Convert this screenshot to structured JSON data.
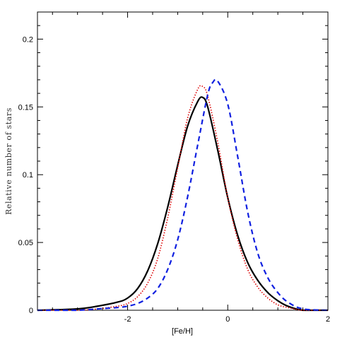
{
  "chart_data": {
    "type": "line",
    "xlabel": "[Fe/H]",
    "ylabel": "Relative number of stars",
    "xlim": [
      -3.8,
      2.0
    ],
    "ylim": [
      0,
      0.22
    ],
    "x_ticks": [
      {
        "value": -2,
        "label": "-2"
      },
      {
        "value": 0,
        "label": "0"
      },
      {
        "value": 2,
        "label": "2"
      }
    ],
    "y_ticks": [
      {
        "value": 0,
        "label": "0"
      },
      {
        "value": 0.05,
        "label": "0.05"
      },
      {
        "value": 0.1,
        "label": "0.1"
      },
      {
        "value": 0.15,
        "label": "0.15"
      },
      {
        "value": 0.2,
        "label": "0.2"
      }
    ],
    "grid": false,
    "series": [
      {
        "style": "solid",
        "color": "#000000",
        "x": [
          -3.8,
          -3.0,
          -2.6,
          -2.2,
          -2.0,
          -1.8,
          -1.6,
          -1.4,
          -1.2,
          -1.0,
          -0.8,
          -0.6,
          -0.5,
          -0.4,
          -0.2,
          0.0,
          0.2,
          0.4,
          0.6,
          0.8,
          1.0,
          1.2,
          1.5,
          2.0
        ],
        "y": [
          0.0,
          0.001,
          0.003,
          0.006,
          0.009,
          0.016,
          0.029,
          0.049,
          0.076,
          0.107,
          0.136,
          0.154,
          0.157,
          0.15,
          0.118,
          0.083,
          0.055,
          0.035,
          0.022,
          0.013,
          0.007,
          0.003,
          0.0,
          0.0
        ]
      },
      {
        "style": "dotted",
        "color": "#dd0000",
        "x": [
          -3.8,
          -3.0,
          -2.6,
          -2.2,
          -2.0,
          -1.8,
          -1.6,
          -1.4,
          -1.2,
          -1.0,
          -0.8,
          -0.6,
          -0.5,
          -0.4,
          -0.2,
          0.0,
          0.2,
          0.4,
          0.6,
          0.8,
          1.0,
          1.2,
          1.5,
          2.0
        ],
        "y": [
          0.0,
          0.0,
          0.001,
          0.003,
          0.005,
          0.01,
          0.02,
          0.038,
          0.068,
          0.105,
          0.142,
          0.163,
          0.165,
          0.158,
          0.124,
          0.083,
          0.052,
          0.03,
          0.017,
          0.009,
          0.004,
          0.002,
          0.0,
          0.0
        ]
      },
      {
        "style": "dashed",
        "color": "#1020e0",
        "x": [
          -3.8,
          -3.0,
          -2.6,
          -2.2,
          -2.0,
          -1.8,
          -1.6,
          -1.4,
          -1.2,
          -1.0,
          -0.8,
          -0.6,
          -0.4,
          -0.3,
          -0.2,
          0.0,
          0.2,
          0.4,
          0.6,
          0.8,
          1.0,
          1.2,
          1.5,
          2.0
        ],
        "y": [
          0.0,
          0.0,
          0.001,
          0.002,
          0.003,
          0.005,
          0.009,
          0.016,
          0.03,
          0.052,
          0.084,
          0.122,
          0.159,
          0.168,
          0.169,
          0.152,
          0.113,
          0.072,
          0.042,
          0.024,
          0.013,
          0.006,
          0.001,
          0.0
        ]
      }
    ]
  }
}
